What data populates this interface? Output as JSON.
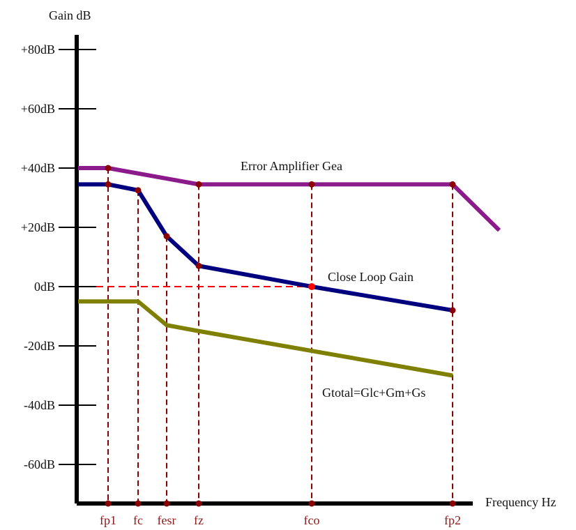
{
  "y_axis_title": "Gain dB",
  "x_axis_title": "Frequency Hz",
  "y_ticks": [
    {
      "label": "+80dB",
      "db": 80
    },
    {
      "label": "+60dB",
      "db": 60
    },
    {
      "label": "+40dB",
      "db": 40
    },
    {
      "label": "+20dB",
      "db": 20
    },
    {
      "label": "0dB",
      "db": 0
    },
    {
      "label": "-20dB",
      "db": -20
    },
    {
      "label": "-40dB",
      "db": -40
    },
    {
      "label": "-60dB",
      "db": -60
    }
  ],
  "frequency_markers": [
    "fp1",
    "fc",
    "fesr",
    "fz",
    "fco",
    "fp2"
  ],
  "curves": {
    "error_amplifier": {
      "label": "Error Amplifier Gea",
      "color": "#8b1a8b",
      "points": [
        [
          "start",
          40
        ],
        [
          "fp1",
          40
        ],
        [
          "fz",
          34.5
        ],
        [
          "fco",
          34.5
        ],
        [
          "fp2",
          34.5
        ],
        [
          "end",
          19
        ]
      ]
    },
    "close_loop": {
      "label": "Close Loop Gain",
      "color": "#00007f",
      "points": [
        [
          "start",
          34.5
        ],
        [
          "fp1",
          34.5
        ],
        [
          "fc",
          32.5
        ],
        [
          "fesr",
          17
        ],
        [
          "fz",
          7
        ],
        [
          "fco",
          0
        ],
        [
          "fp2",
          -8
        ]
      ]
    },
    "gtotal": {
      "label": "Gtotal=Glc+Gm+Gs",
      "color": "#7f7f00",
      "points": [
        [
          "start",
          -5
        ],
        [
          "fc",
          -5
        ],
        [
          "fesr",
          -13
        ],
        [
          "fz",
          -15
        ],
        [
          "fp2",
          -30
        ]
      ]
    }
  },
  "zero_db_reference_color": "#ff0000",
  "marker_color": "#8b0000"
}
